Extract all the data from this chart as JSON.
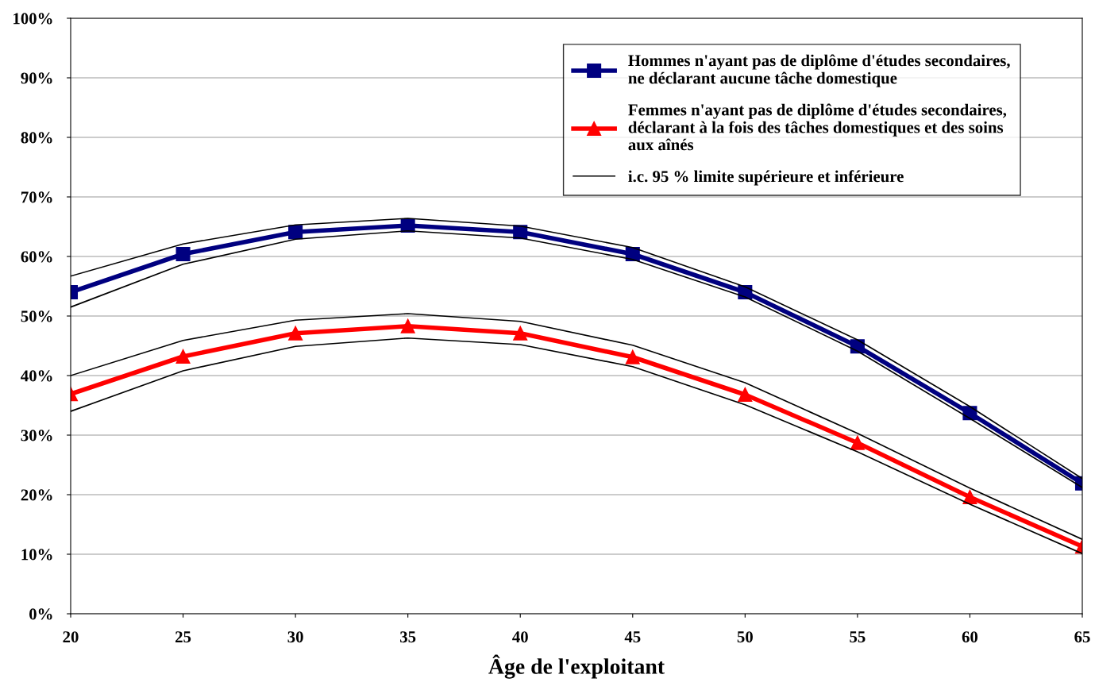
{
  "chart_data": {
    "type": "line",
    "xlabel": "Âge de l'exploitant",
    "x": [
      20,
      25,
      30,
      35,
      40,
      45,
      50,
      55,
      60,
      65
    ],
    "xlim": [
      20,
      65
    ],
    "xticks": [
      20,
      25,
      30,
      35,
      40,
      45,
      50,
      55,
      60,
      65
    ],
    "ylim": [
      0,
      100
    ],
    "yticks": [
      {
        "value": 0,
        "label": "0%"
      },
      {
        "value": 10,
        "label": "10%"
      },
      {
        "value": 20,
        "label": "20%"
      },
      {
        "value": 30,
        "label": "30%"
      },
      {
        "value": 40,
        "label": "40%"
      },
      {
        "value": 50,
        "label": "50%"
      },
      {
        "value": 60,
        "label": "60%"
      },
      {
        "value": 70,
        "label": "70%"
      },
      {
        "value": 80,
        "label": "80%"
      },
      {
        "value": 90,
        "label": "90%"
      },
      {
        "value": 100,
        "label": "100%"
      }
    ],
    "grid": "y",
    "legend": "top right",
    "line_style": "solid",
    "series": [
      {
        "name": "i.c. 95 % limite supérieure et inférieure",
        "color": "#000000",
        "marker": "none",
        "values": [
          56.7,
          62.1,
          65.3,
          66.4,
          65.1,
          61.5,
          54.9,
          46.0,
          34.8,
          22.7
        ]
      },
      {
        "color": "#000000",
        "marker": "none",
        "values": [
          51.5,
          58.7,
          62.9,
          64.3,
          63.1,
          59.5,
          53.2,
          44.1,
          32.8,
          21.2
        ]
      },
      {
        "color": "#000000",
        "marker": "none",
        "values": [
          40.0,
          45.9,
          49.3,
          50.4,
          49.1,
          45.1,
          38.8,
          30.3,
          21.1,
          12.5
        ]
      },
      {
        "color": "#000000",
        "marker": "none",
        "values": [
          34.0,
          40.8,
          44.9,
          46.3,
          45.2,
          41.5,
          35.1,
          27.2,
          18.4,
          10.1
        ]
      },
      {
        "name": "Hommes n'ayant pas de diplôme d'études secondaires,\nne déclarant aucune tâche domestique",
        "color": "#000080",
        "marker": "square",
        "values": [
          54.0,
          60.4,
          64.1,
          65.2,
          64.1,
          60.4,
          54.0,
          44.9,
          33.7,
          21.9
        ]
      },
      {
        "name": "Femmes n'ayant pas de diplôme d'études secondaires,\ndéclarant à la fois des tâches domestiques et des soins\naux aînés",
        "color": "#ff0000",
        "marker": "triangle",
        "values": [
          36.9,
          43.2,
          47.1,
          48.3,
          47.1,
          43.1,
          36.8,
          28.7,
          19.6,
          11.3
        ]
      }
    ]
  }
}
